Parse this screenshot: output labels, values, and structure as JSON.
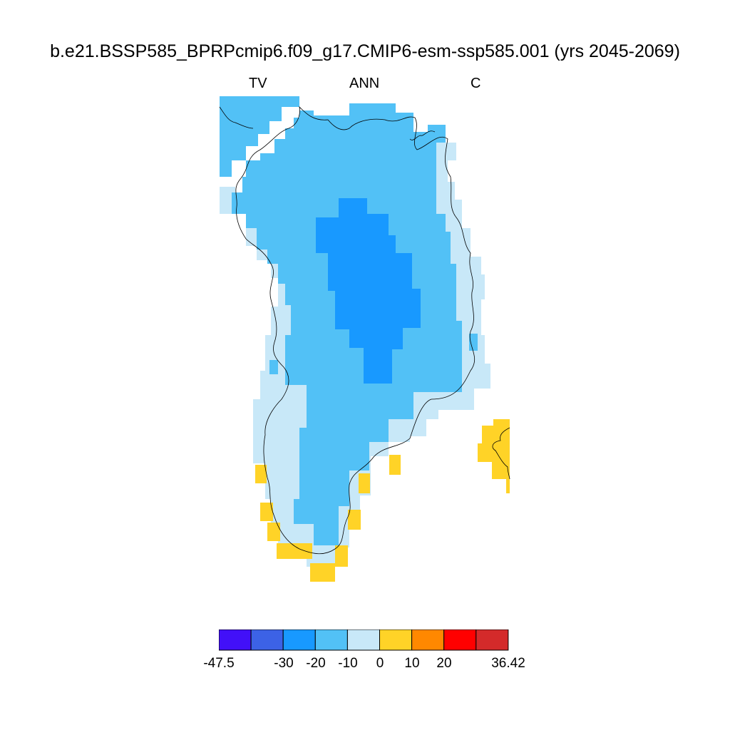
{
  "title": "b.e21.BSSP585_BPRPcmip6.f09_g17.CMIP6-esm-ssp585.001 (yrs 2045-2069)",
  "subtitles": {
    "left": "TV",
    "center": "ANN",
    "right": "C"
  },
  "colors": {
    "bin_neg30_neg20": "#1899ff",
    "bin_neg20_neg10": "#52c1f6",
    "bin_neg10_0": "#c8e8f8",
    "bin_0_10": "#ffd327"
  },
  "colorbar": {
    "colors": [
      "#4210f8",
      "#3c62e6",
      "#1899ff",
      "#52c1f6",
      "#c8e8f8",
      "#ffd327",
      "#ff8800",
      "#ff0000",
      "#d42a2a"
    ],
    "labels": [
      "-47.5",
      "-30",
      "-20",
      "-10",
      "0",
      "10",
      "20",
      "36.42"
    ]
  }
}
